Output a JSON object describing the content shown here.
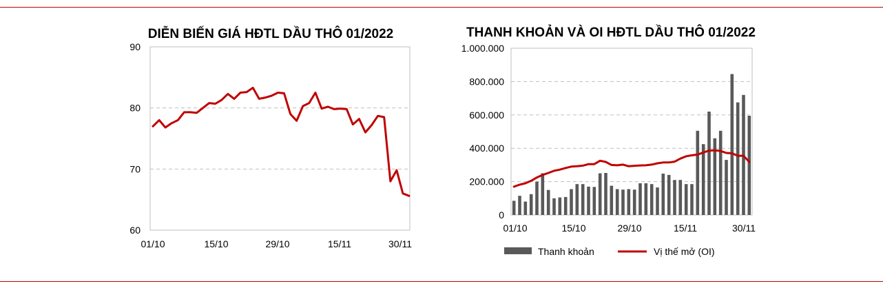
{
  "chart_data": [
    {
      "type": "line",
      "title": "DIỄN BIẾN GIÁ HĐTL DẦU THÔ 01/2022",
      "xlabel": "",
      "ylabel": "",
      "x_ticks": [
        "01/10",
        "15/10",
        "29/10",
        "15/11",
        "30/11"
      ],
      "ylim": [
        60,
        90
      ],
      "y_ticks": [
        "60",
        "70",
        "80",
        "90"
      ],
      "grid": "horizontal dashed",
      "line_color": "#c00000",
      "values": [
        77.0,
        78.0,
        76.8,
        77.5,
        78.0,
        79.3,
        79.3,
        79.2,
        80.0,
        80.8,
        80.7,
        81.3,
        82.3,
        81.5,
        82.5,
        82.6,
        83.3,
        81.5,
        81.7,
        82.0,
        82.5,
        82.4,
        79.0,
        77.9,
        80.3,
        80.8,
        82.5,
        79.9,
        80.2,
        79.8,
        79.9,
        79.8,
        77.3,
        78.2,
        76.0,
        77.2,
        78.7,
        78.5,
        68.0,
        69.8,
        66.0,
        65.6
      ]
    },
    {
      "type": "bar+line",
      "title": "THANH KHOẢN VÀ OI HĐTL DẦU THÔ 01/2022",
      "xlabel": "",
      "ylabel": "",
      "x_ticks": [
        "01/10",
        "15/10",
        "29/10",
        "15/11",
        "30/11"
      ],
      "ylim": [
        0,
        1000000
      ],
      "y_ticks": [
        "0",
        "200.000",
        "400.000",
        "600.000",
        "800.000",
        "1.000.000"
      ],
      "grid": "horizontal dashed",
      "legend": "bottom",
      "series": [
        {
          "name": "Thanh khoản",
          "kind": "bar",
          "color": "#595959",
          "values": [
            85000,
            115000,
            80000,
            125000,
            200000,
            250000,
            150000,
            100000,
            105000,
            108000,
            155000,
            185000,
            185000,
            170000,
            168000,
            250000,
            252000,
            175000,
            155000,
            152000,
            155000,
            152000,
            190000,
            190000,
            185000,
            165000,
            248000,
            240000,
            210000,
            210000,
            185000,
            185000,
            505000,
            425000,
            620000,
            460000,
            505000,
            330000,
            845000,
            675000,
            720000,
            595000
          ]
        },
        {
          "name": "Vị thế mở (OI)",
          "kind": "line",
          "color": "#c00000",
          "values": [
            170000,
            182000,
            190000,
            205000,
            225000,
            240000,
            252000,
            265000,
            272000,
            282000,
            290000,
            292000,
            296000,
            305000,
            305000,
            325000,
            318000,
            300000,
            298000,
            302000,
            292000,
            295000,
            297000,
            298000,
            302000,
            310000,
            315000,
            315000,
            320000,
            338000,
            352000,
            358000,
            362000,
            375000,
            386000,
            388000,
            384000,
            372000,
            370000,
            355000,
            355000,
            318000
          ]
        }
      ]
    }
  ]
}
